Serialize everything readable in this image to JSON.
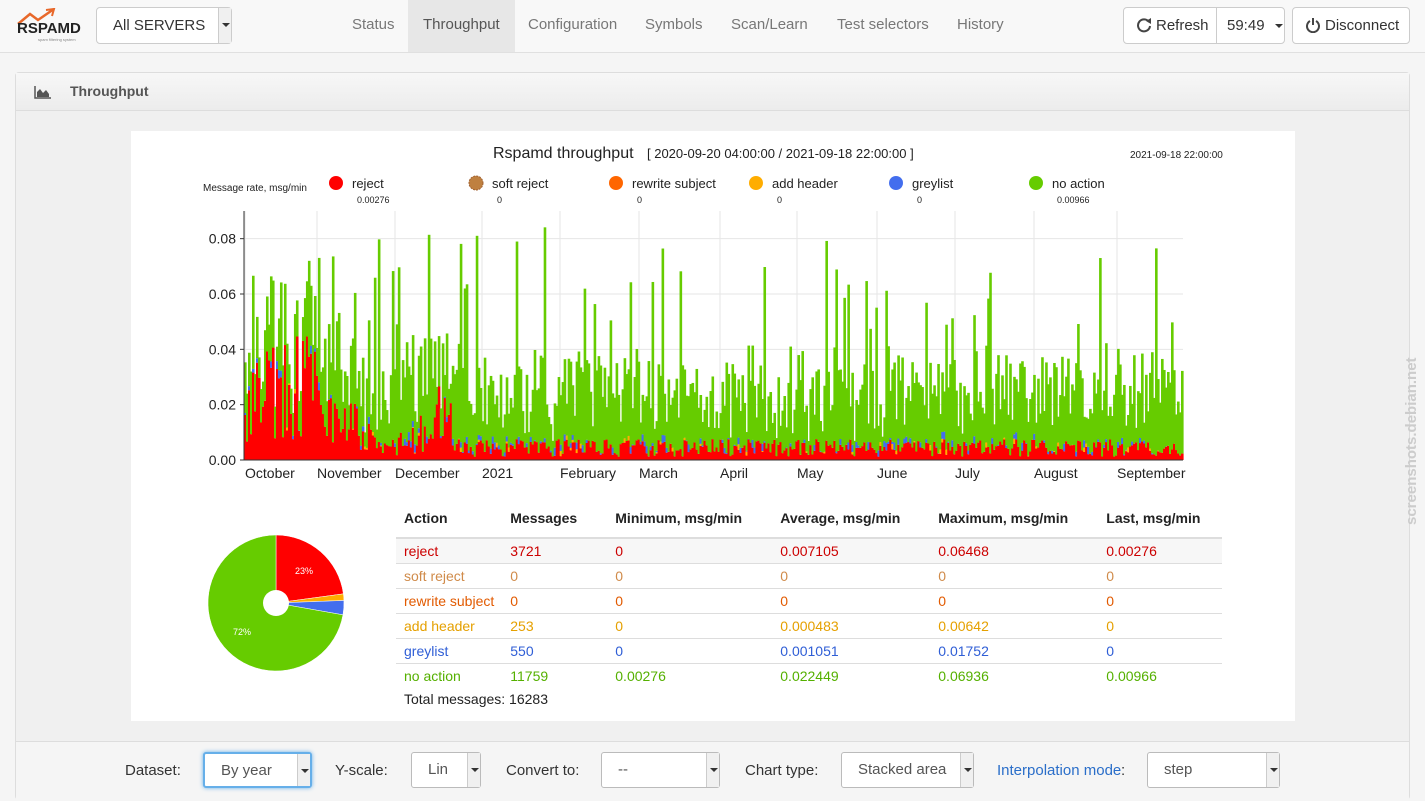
{
  "navbar": {
    "logo_text": "RSPAMD",
    "logo_sub": "spam filtering system",
    "server_select": "All SERVERS",
    "tabs": [
      "Status",
      "Throughput",
      "Configuration",
      "Symbols",
      "Scan/Learn",
      "Test selectors",
      "History"
    ],
    "active_tab": "Throughput",
    "refresh_label": "Refresh",
    "timer": "59:49",
    "disconnect_label": "Disconnect"
  },
  "panel": {
    "title": "Throughput"
  },
  "chart_header": {
    "title": "Rspamd throughput",
    "range": "[ 2020-09-20 04:00:00 / 2021-09-18 22:00:00 ]",
    "cursor_time": "2021-09-18 22:00:00",
    "ylabel": "Message rate, msg/min"
  },
  "legend": [
    {
      "name": "reject",
      "color": "#ff0000",
      "value": "0.00276"
    },
    {
      "name": "soft reject",
      "color": "#bf8040",
      "value": "0"
    },
    {
      "name": "rewrite subject",
      "color": "#ff6600",
      "value": "0"
    },
    {
      "name": "add header",
      "color": "#ffad00",
      "value": "0"
    },
    {
      "name": "greylist",
      "color": "#436eee",
      "value": "0"
    },
    {
      "name": "no action",
      "color": "#66cc00",
      "value": "0.00966"
    }
  ],
  "chart_data": {
    "type": "area",
    "stacked": true,
    "ylabel": "Message rate, msg/min",
    "ylim": [
      0,
      0.09
    ],
    "yticks": [
      "0.00",
      "0.02",
      "0.04",
      "0.06",
      "0.08"
    ],
    "xticks": [
      "October",
      "November",
      "December",
      "2021",
      "February",
      "March",
      "April",
      "May",
      "June",
      "July",
      "August",
      "September"
    ],
    "grid": true,
    "series": [
      {
        "name": "reject",
        "approx_average": 0.007105,
        "max": 0.06468,
        "last": 0.00276
      },
      {
        "name": "add header",
        "approx_average": 0.000483,
        "max": 0.00642,
        "last": 0
      },
      {
        "name": "greylist",
        "approx_average": 0.001051,
        "max": 0.01752,
        "last": 0
      },
      {
        "name": "no action",
        "approx_average": 0.022449,
        "max": 0.06936,
        "last": 0.00966
      }
    ]
  },
  "pie_data": {
    "type": "pie",
    "slices": [
      {
        "name": "reject",
        "value": 3721,
        "color": "#ff0000"
      },
      {
        "name": "add header",
        "value": 253,
        "color": "#ffad00"
      },
      {
        "name": "greylist",
        "value": 550,
        "color": "#436eee"
      },
      {
        "name": "no action",
        "value": 11759,
        "color": "#66cc00"
      }
    ],
    "labels": [
      "23%",
      "72%"
    ]
  },
  "table": {
    "headers": [
      "Action",
      "Messages",
      "Minimum, msg/min",
      "Average, msg/min",
      "Maximum, msg/min",
      "Last, msg/min"
    ],
    "rows": [
      {
        "color": "#cc0000",
        "cells": [
          "reject",
          "3721",
          "0",
          "0.007105",
          "0.06468",
          "0.00276"
        ]
      },
      {
        "color": "#d08b4a",
        "cells": [
          "soft reject",
          "0",
          "0",
          "0",
          "0",
          "0"
        ]
      },
      {
        "color": "#e25a00",
        "cells": [
          "rewrite subject",
          "0",
          "0",
          "0",
          "0",
          "0"
        ]
      },
      {
        "color": "#e5a000",
        "cells": [
          "add header",
          "253",
          "0",
          "0.000483",
          "0.00642",
          "0"
        ]
      },
      {
        "color": "#2f5ed6",
        "cells": [
          "greylist",
          "550",
          "0",
          "0.001051",
          "0.01752",
          "0"
        ]
      },
      {
        "color": "#55b000",
        "cells": [
          "no action",
          "11759",
          "0.00276",
          "0.022449",
          "0.06936",
          "0.00966"
        ]
      }
    ],
    "total_label": "Total messages: 16283"
  },
  "footer": {
    "dataset_label": "Dataset:",
    "dataset_value": "By year",
    "yscale_label": "Y-scale:",
    "yscale_value": "Lin",
    "convert_label": "Convert to:",
    "convert_value": "--",
    "charttype_label": "Chart type:",
    "charttype_value": "Stacked area",
    "interp_label": "Interpolation mode",
    "interp_colon": ":",
    "interp_value": "step"
  },
  "watermark": "screenshots.debian.net"
}
